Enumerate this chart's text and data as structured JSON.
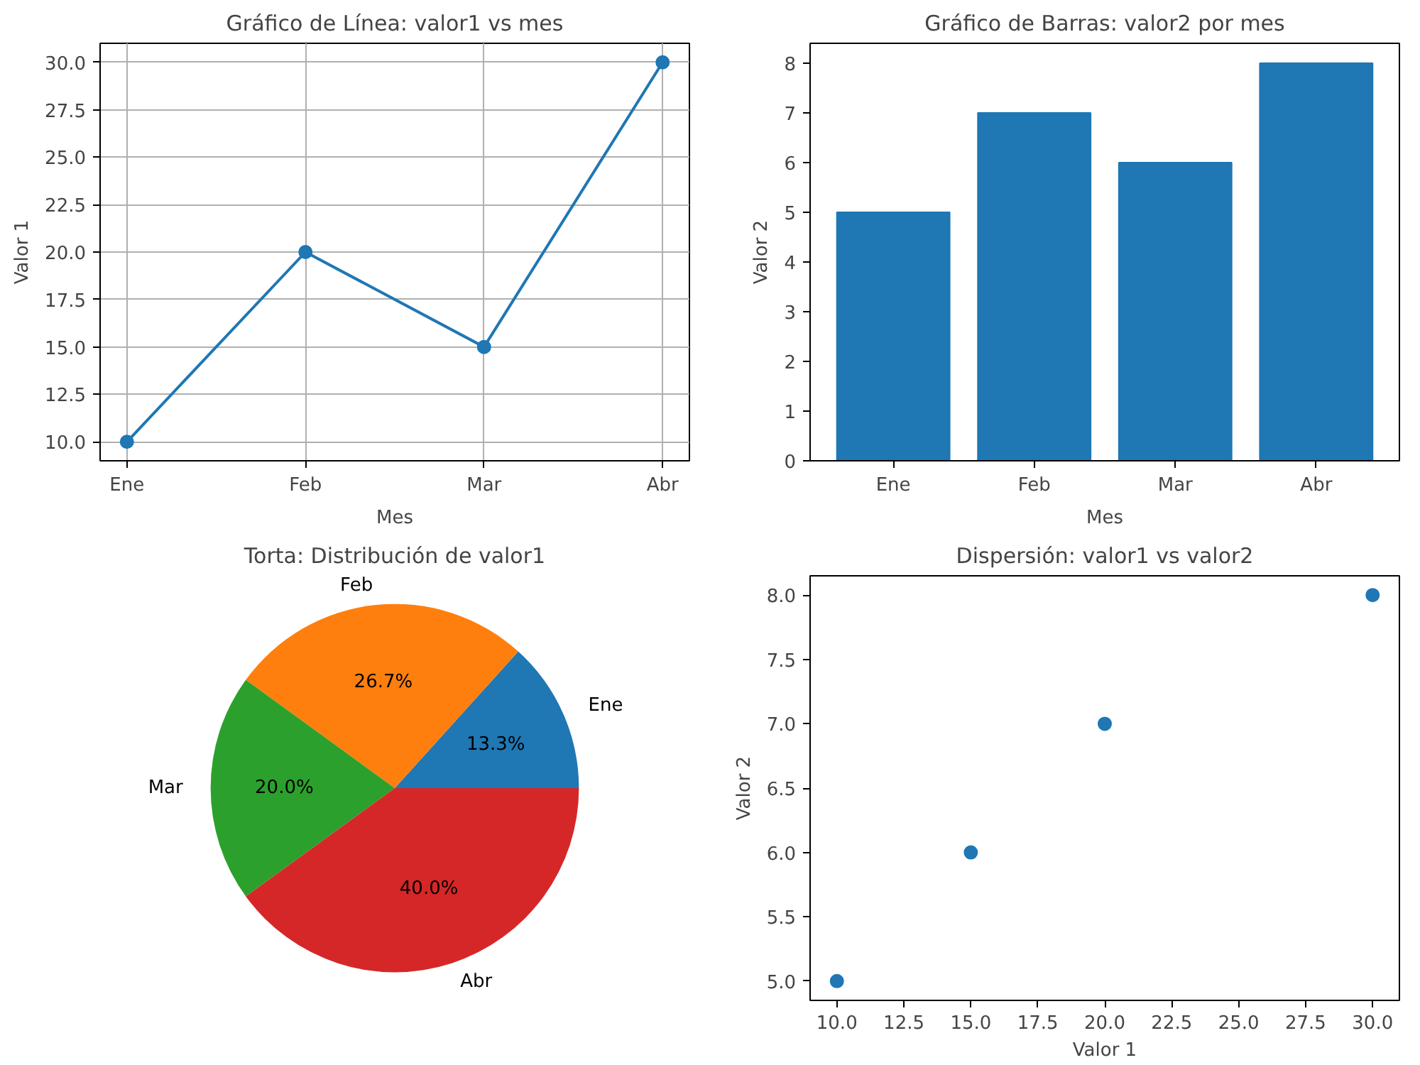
{
  "chart_data": [
    {
      "type": "line",
      "title": "Gráfico de Línea: valor1 vs mes",
      "xlabel": "Mes",
      "ylabel": "Valor 1",
      "categories": [
        "Ene",
        "Feb",
        "Mar",
        "Abr"
      ],
      "values": [
        10,
        20,
        15,
        30
      ],
      "color": "#1f77b4",
      "marker": "circle",
      "grid": true,
      "ylim": [
        9.0,
        31.0
      ],
      "yticks": [
        {
          "value": 10,
          "label": "10.0"
        },
        {
          "value": 12.5,
          "label": "12.5"
        },
        {
          "value": 15,
          "label": "15.0"
        },
        {
          "value": 17.5,
          "label": "17.5"
        },
        {
          "value": 20,
          "label": "20.0"
        },
        {
          "value": 22.5,
          "label": "22.5"
        },
        {
          "value": 25,
          "label": "25.0"
        },
        {
          "value": 27.5,
          "label": "27.5"
        },
        {
          "value": 30,
          "label": "30.0"
        }
      ]
    },
    {
      "type": "bar",
      "title": "Gráfico de Barras: valor2 por mes",
      "xlabel": "Mes",
      "ylabel": "Valor 2",
      "categories": [
        "Ene",
        "Feb",
        "Mar",
        "Abr"
      ],
      "values": [
        5,
        7,
        6,
        8
      ],
      "color": "#1f77b4",
      "ylim": [
        0,
        8.4
      ],
      "yticks": [
        0,
        1,
        2,
        3,
        4,
        5,
        6,
        7,
        8
      ]
    },
    {
      "type": "pie",
      "title": "Torta: Distribución de valor1",
      "categories": [
        "Ene",
        "Feb",
        "Mar",
        "Abr"
      ],
      "values": [
        13.3,
        26.7,
        20.0,
        40.0
      ],
      "colors": [
        "#1f77b4",
        "#ff7f0e",
        "#2ca02c",
        "#d62728"
      ],
      "value_labels": [
        "13.3%",
        "26.7%",
        "20.0%",
        "40.0%"
      ]
    },
    {
      "type": "scatter",
      "title": "Dispersión: valor1 vs valor2",
      "xlabel": "Valor 1",
      "ylabel": "Valor 2",
      "x": [
        10,
        15,
        20,
        30
      ],
      "values": [
        5,
        6,
        7,
        8
      ],
      "color": "#1f77b4",
      "marker": "circle",
      "xlim": [
        9.0,
        31.0
      ],
      "ylim": [
        4.85,
        8.15
      ],
      "xticks": [
        {
          "value": 10,
          "label": "10.0"
        },
        {
          "value": 12.5,
          "label": "12.5"
        },
        {
          "value": 15,
          "label": "15.0"
        },
        {
          "value": 17.5,
          "label": "17.5"
        },
        {
          "value": 20,
          "label": "20.0"
        },
        {
          "value": 22.5,
          "label": "22.5"
        },
        {
          "value": 25,
          "label": "25.0"
        },
        {
          "value": 27.5,
          "label": "27.5"
        },
        {
          "value": 30,
          "label": "30.0"
        }
      ],
      "yticks": [
        {
          "value": 5,
          "label": "5.0"
        },
        {
          "value": 5.5,
          "label": "5.5"
        },
        {
          "value": 6,
          "label": "6.0"
        },
        {
          "value": 6.5,
          "label": "6.5"
        },
        {
          "value": 7,
          "label": "7.0"
        },
        {
          "value": 7.5,
          "label": "7.5"
        },
        {
          "value": 8,
          "label": "8.0"
        }
      ]
    }
  ]
}
